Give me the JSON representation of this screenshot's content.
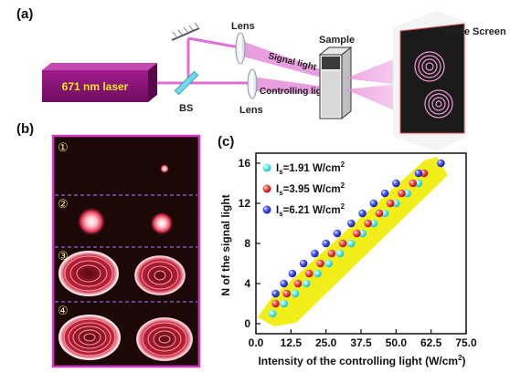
{
  "panel_a": {
    "label": "(a)",
    "laser_label": "671 nm laser",
    "bs_label": "BS",
    "lens_top_label": "Lens",
    "lens_bottom_label": "Lens",
    "signal_label": "Signal light",
    "controlling_label": "Controlling light",
    "sample_label": "Sample",
    "screen_label": "White Screen"
  },
  "panel_b": {
    "label": "(b)",
    "frames": [
      {
        "marker": "①"
      },
      {
        "marker": "②"
      },
      {
        "marker": "③"
      },
      {
        "marker": "④"
      }
    ]
  },
  "panel_c": {
    "label": "(c)"
  },
  "chart_data": {
    "type": "scatter",
    "xlabel": "Intensity of the controlling light (W/cm²)",
    "ylabel": "N of the signal light",
    "xlim": [
      0,
      75
    ],
    "ylim": [
      -1,
      17
    ],
    "xticks": [
      "0.0",
      "12.5",
      "25.0",
      "37.5",
      "50.0",
      "62.5",
      "75.0"
    ],
    "yticks": [
      "0",
      "4",
      "8",
      "12",
      "16"
    ],
    "legend_position": "top-left",
    "series": [
      {
        "name": "Is=1.91 W/cm²",
        "name_main": "I",
        "name_sub": "s",
        "name_rest": "=1.91 W/cm",
        "name_sup": "2",
        "color": "#33e0e8",
        "points": [
          [
            6,
            1
          ],
          [
            10,
            2
          ],
          [
            14,
            3
          ],
          [
            18,
            4
          ],
          [
            22,
            5
          ],
          [
            26,
            6
          ],
          [
            30,
            7
          ],
          [
            34,
            8
          ],
          [
            38,
            9
          ],
          [
            42,
            10
          ],
          [
            46,
            11
          ],
          [
            50,
            12
          ],
          [
            54,
            13
          ],
          [
            58,
            14
          ]
        ]
      },
      {
        "name": "Is=3.95 W/cm²",
        "name_main": "I",
        "name_sub": "s",
        "name_rest": "=3.95 W/cm",
        "name_sup": "2",
        "color": "#e02020",
        "points": [
          [
            7,
            2
          ],
          [
            11,
            3
          ],
          [
            15,
            4
          ],
          [
            19,
            5
          ],
          [
            23,
            6
          ],
          [
            27,
            7
          ],
          [
            31,
            8
          ],
          [
            36,
            9
          ],
          [
            40,
            10
          ],
          [
            44,
            11
          ],
          [
            48,
            12
          ],
          [
            52,
            13
          ],
          [
            56,
            14
          ],
          [
            60,
            15
          ]
        ]
      },
      {
        "name": "Is=6.21 W/cm²",
        "name_main": "I",
        "name_sub": "s",
        "name_rest": "=6.21 W/cm",
        "name_sup": "2",
        "color": "#2233cc",
        "points": [
          [
            7,
            3
          ],
          [
            10,
            4
          ],
          [
            13,
            5
          ],
          [
            17,
            6
          ],
          [
            21,
            7
          ],
          [
            25,
            8
          ],
          [
            29,
            9
          ],
          [
            34,
            10
          ],
          [
            38,
            11
          ],
          [
            42,
            12
          ],
          [
            46,
            13
          ],
          [
            50,
            14
          ],
          [
            58,
            15
          ],
          [
            66,
            16
          ]
        ]
      }
    ]
  }
}
